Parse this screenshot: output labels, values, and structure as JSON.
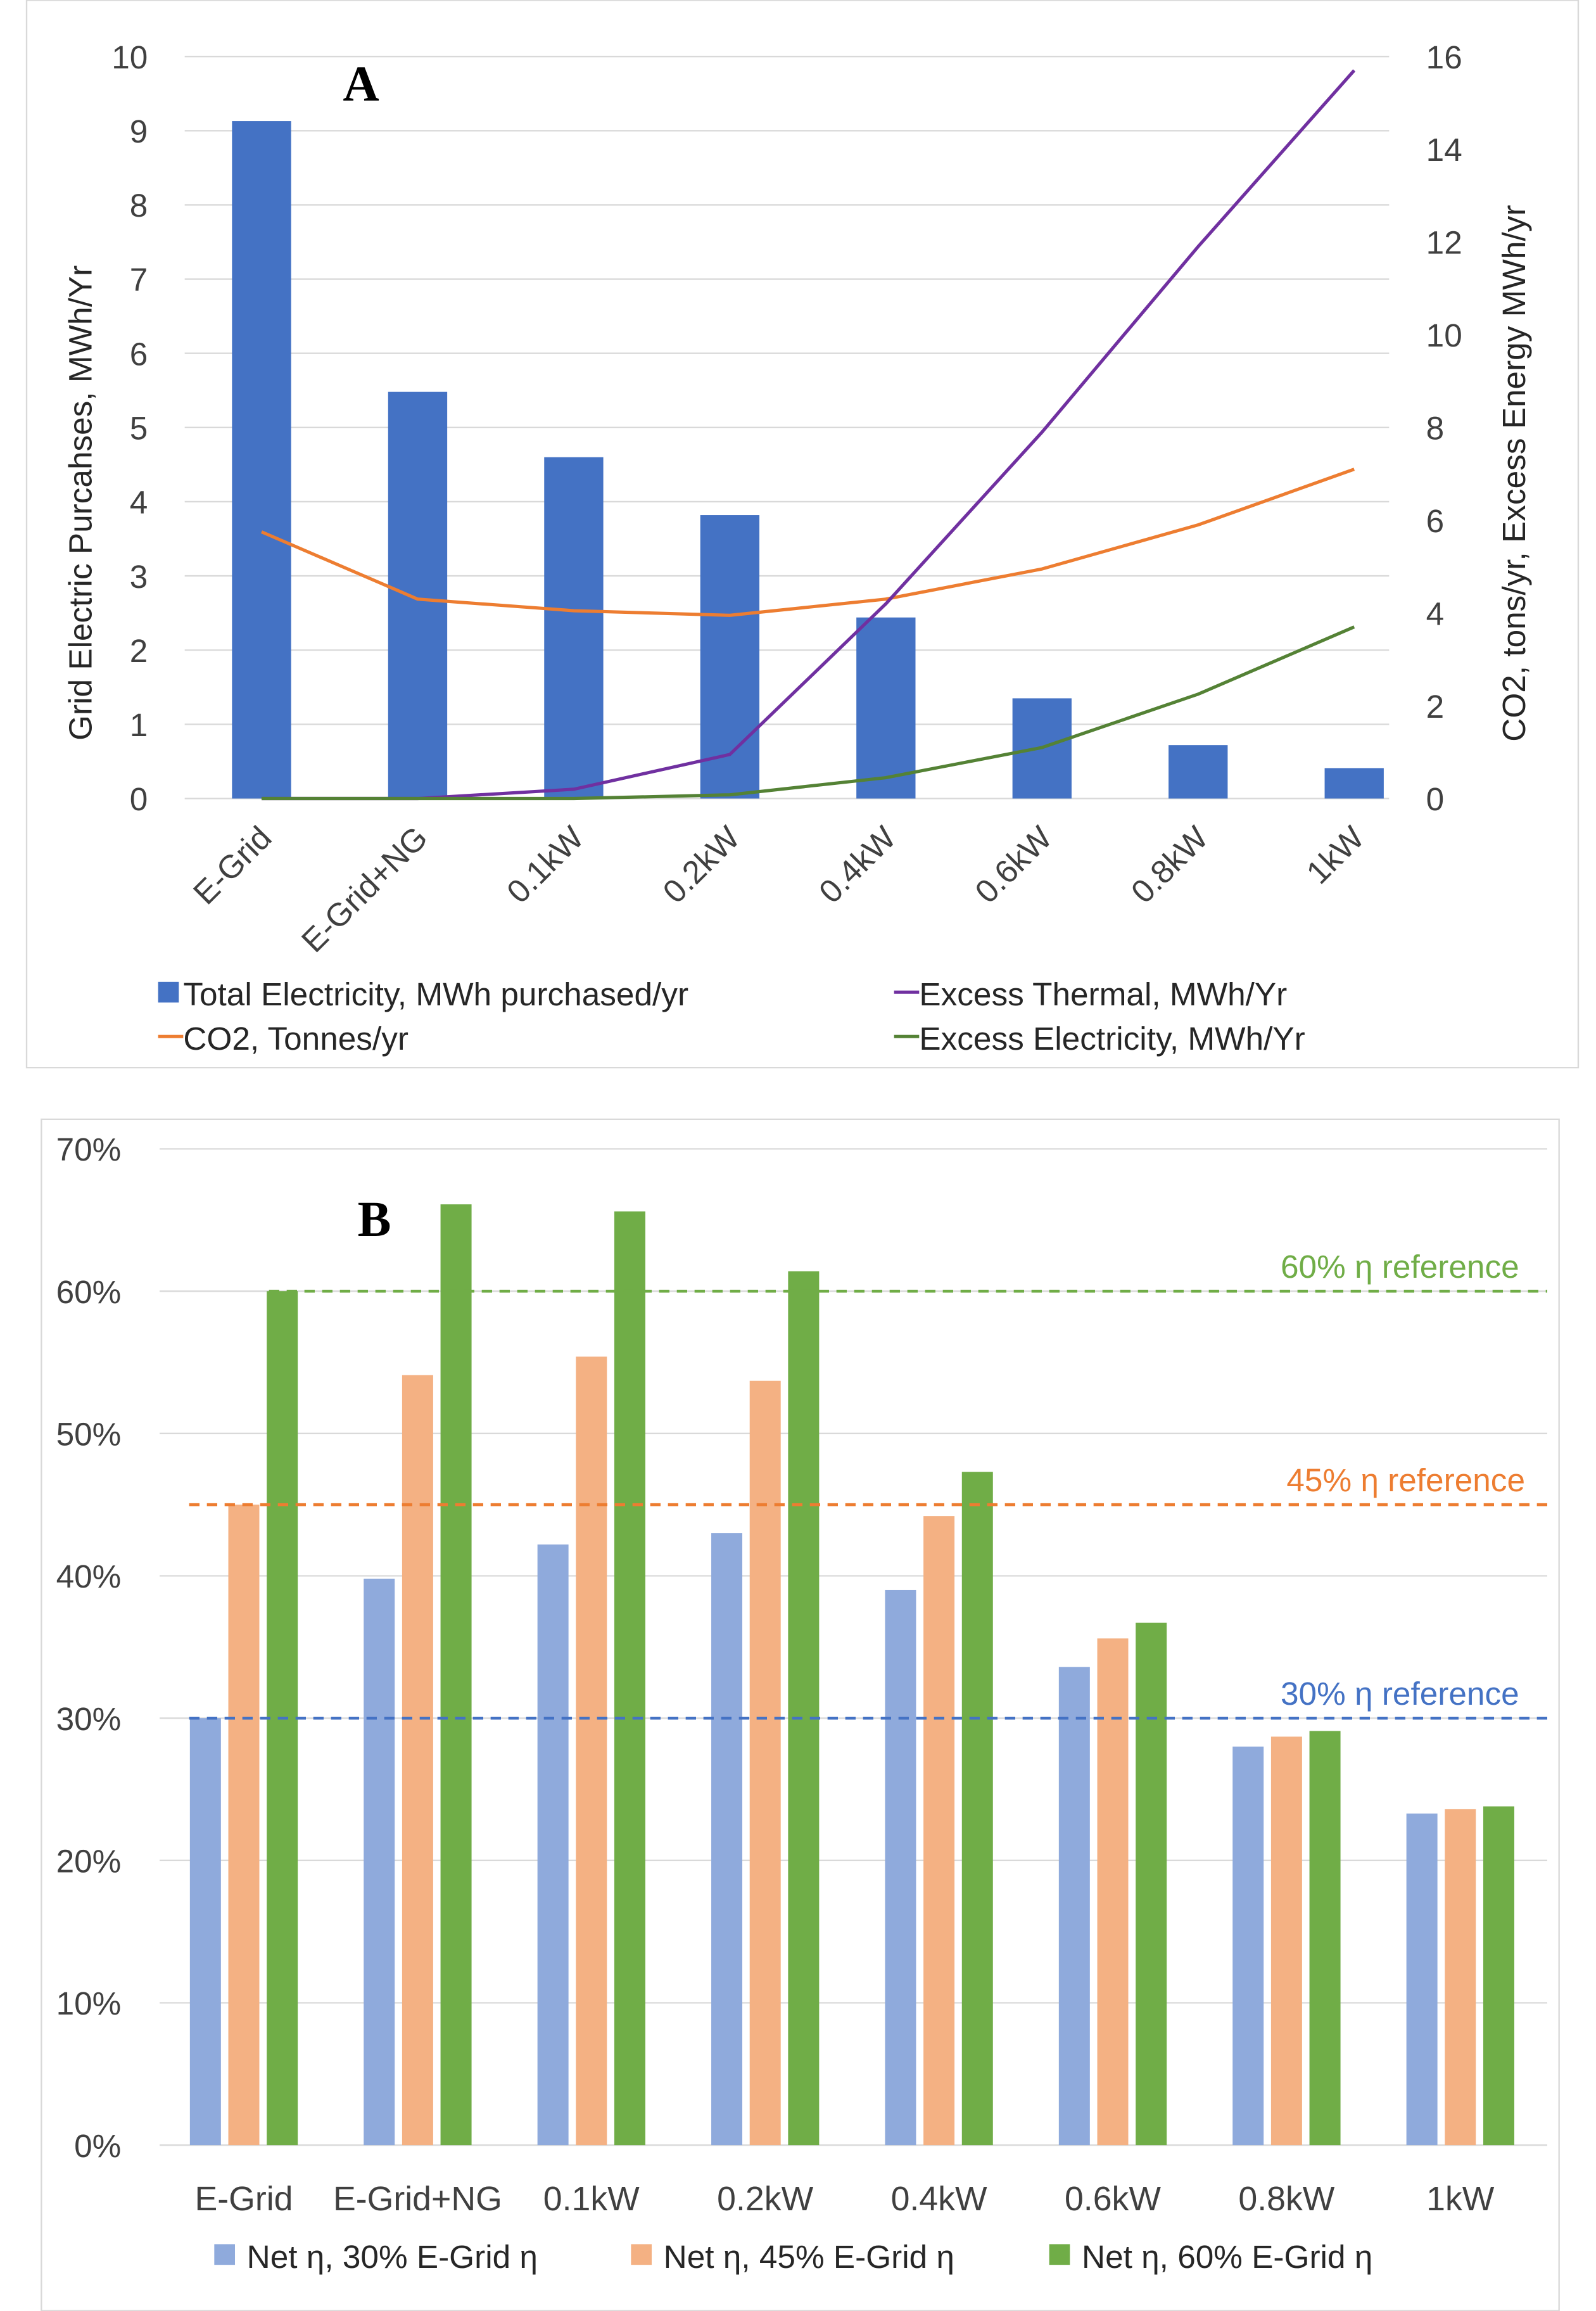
{
  "chart_data": [
    {
      "type": "bar+line",
      "panel_label": "A",
      "categories": [
        "E-Grid",
        "E-Grid+NG",
        "0.1kW",
        "0.2kW",
        "0.4kW",
        "0.6kW",
        "0.8kW",
        "1kW"
      ],
      "ylabel": "Grid Electric Purcahses, MWh/Yr",
      "y2label": "CO2, tons/yr, Excess  Energy MWh/yr",
      "ylim": [
        0,
        10
      ],
      "y2lim": [
        0,
        16
      ],
      "yticks": [
        "0",
        "1",
        "2",
        "3",
        "4",
        "5",
        "6",
        "7",
        "8",
        "9",
        "10"
      ],
      "y2ticks": [
        "0",
        "2",
        "4",
        "6",
        "8",
        "10",
        "12",
        "14",
        "16"
      ],
      "grid": true,
      "legend_position": "bottom",
      "series": [
        {
          "name": "Total Electricity, MWh purchased/yr",
          "kind": "bar",
          "axis": "left",
          "color": "#4472C4",
          "values": [
            9.13,
            5.48,
            4.6,
            3.82,
            2.44,
            1.35,
            0.72,
            0.41
          ]
        },
        {
          "name": "CO2, Tonnes/yr",
          "kind": "line",
          "axis": "right",
          "color": "#ED7D31",
          "values": [
            5.75,
            4.3,
            4.05,
            3.95,
            4.3,
            4.95,
            5.9,
            7.1
          ]
        },
        {
          "name": "Excess Thermal, MWh/Yr",
          "kind": "line",
          "axis": "right",
          "color": "#7030A0",
          "values": [
            0,
            0,
            0.2,
            0.95,
            4.2,
            7.9,
            11.9,
            15.7
          ]
        },
        {
          "name": "Excess Electricity, MWh/Yr",
          "kind": "line",
          "axis": "right",
          "color": "#548235",
          "values": [
            0,
            0,
            0,
            0.08,
            0.45,
            1.1,
            2.25,
            3.7
          ]
        }
      ]
    },
    {
      "type": "bar",
      "panel_label": "B",
      "categories": [
        "E-Grid",
        "E-Grid+NG",
        "0.1kW",
        "0.2kW",
        "0.4kW",
        "0.6kW",
        "0.8kW",
        "1kW"
      ],
      "ylim": [
        0,
        70
      ],
      "yticks": [
        "0%",
        "10%",
        "20%",
        "30%",
        "40%",
        "50%",
        "60%",
        "70%"
      ],
      "grid": true,
      "legend_position": "bottom",
      "series": [
        {
          "name": "Net η, 30% E-Grid η",
          "color": "#8FAADC",
          "values": [
            30,
            39.8,
            42.2,
            43.0,
            39.0,
            33.6,
            28.0,
            23.3
          ]
        },
        {
          "name": "Net η, 45% E-Grid η",
          "color": "#F4B183",
          "values": [
            45,
            54.1,
            55.4,
            53.7,
            44.2,
            35.6,
            28.7,
            23.6
          ]
        },
        {
          "name": "Net η, 60% E-Grid η",
          "color": "#70AD47",
          "values": [
            60,
            66.1,
            65.6,
            61.4,
            47.3,
            36.7,
            29.1,
            23.8
          ]
        }
      ],
      "reference_lines": [
        {
          "label": "60% η reference",
          "value": 60,
          "color": "#70AD47"
        },
        {
          "label": "45% η reference",
          "value": 45,
          "color": "#ED7D31"
        },
        {
          "label": "30% η reference",
          "value": 30,
          "color": "#4472C4"
        }
      ]
    }
  ]
}
